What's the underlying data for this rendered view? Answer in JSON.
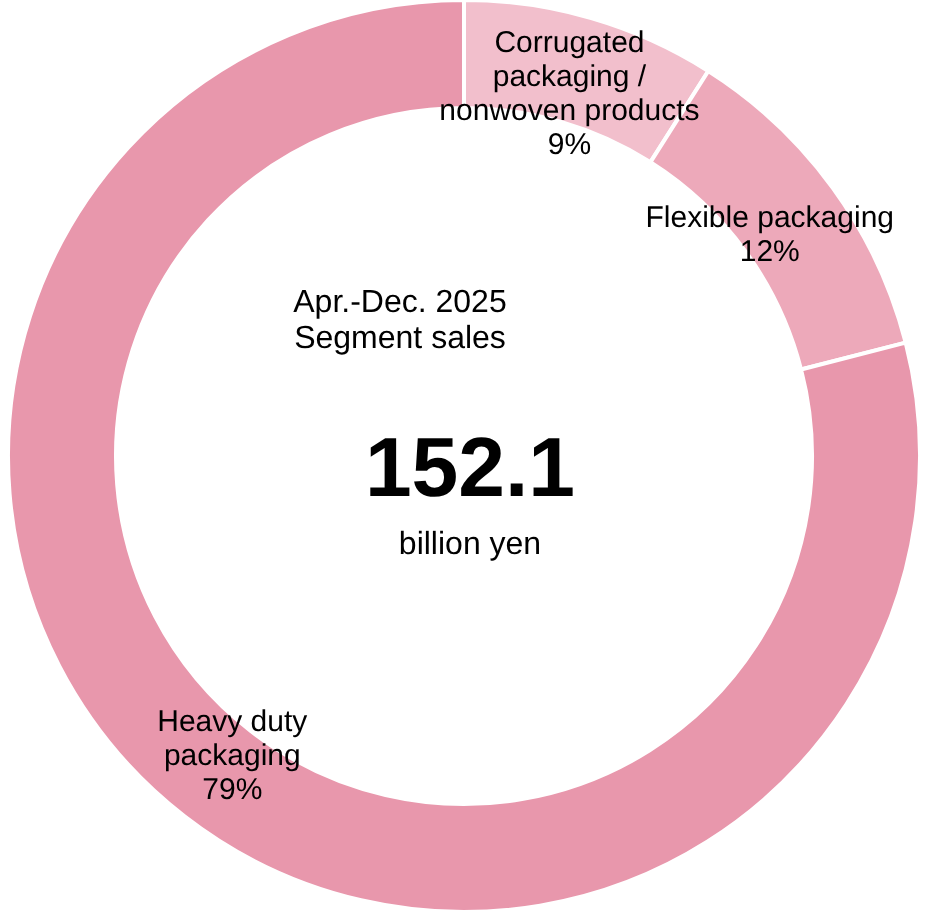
{
  "chart_data": {
    "type": "donut",
    "categories": [
      "Corrugated\npackaging /\nnonwoven products",
      "Flexible packaging",
      "Heavy duty\npackaging"
    ],
    "values": [
      9,
      12,
      79
    ],
    "value_labels": [
      "9%",
      "12%",
      "79%"
    ],
    "colors": [
      "#f2bfcc",
      "#eda9ba",
      "#e897ac"
    ],
    "annotations": [
      "Apr.-Dec. 2025\nSegment sales",
      "152.1",
      "billion yen"
    ]
  }
}
